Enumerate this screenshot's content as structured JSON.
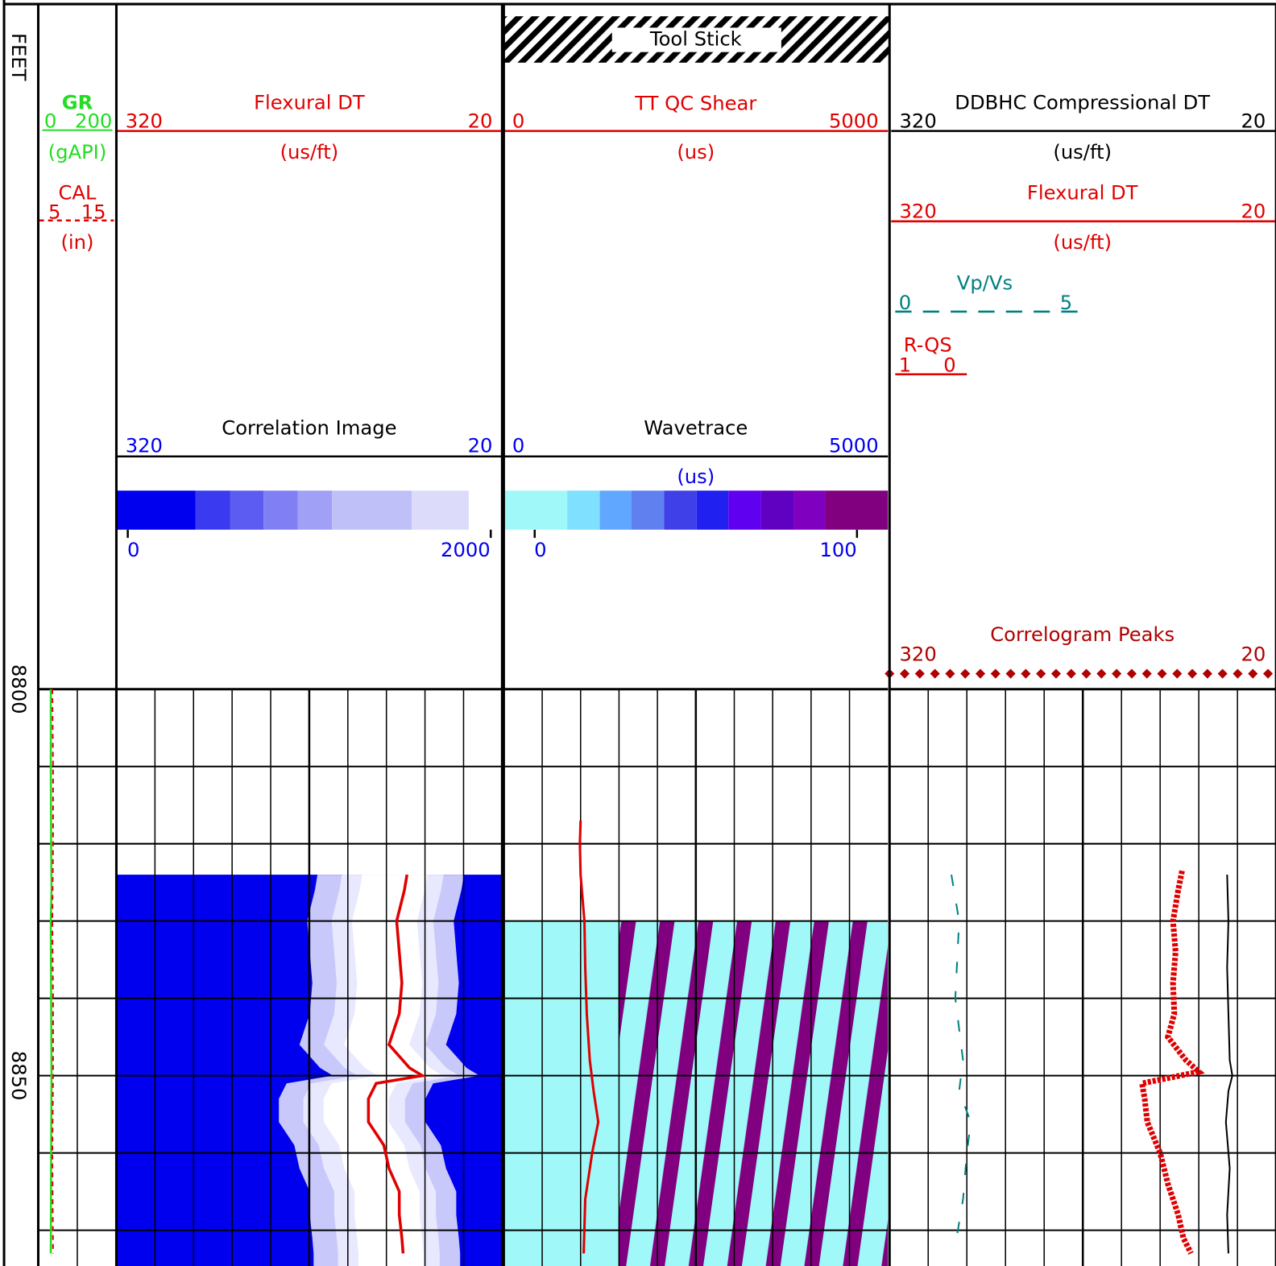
{
  "depth_track": {
    "unit": "FEET",
    "labels": [
      8800,
      8850
    ]
  },
  "gr": {
    "name": "GR",
    "left": 0,
    "right": 200,
    "unit": "(gAPI)",
    "color": "#22dd22",
    "data": {
      "depths": [
        8800,
        8810,
        8820,
        8826,
        8830,
        8840,
        8850,
        8860,
        8873
      ],
      "values": [
        32,
        32,
        33,
        34,
        32,
        33,
        34,
        33,
        32
      ]
    }
  },
  "cal": {
    "name": "CAL",
    "left": 5,
    "right": 15,
    "unit": "(in)",
    "color": "#e00000",
    "data": {
      "depths": [
        8800,
        8810,
        8820,
        8830,
        8840,
        8850,
        8860,
        8873
      ],
      "values": [
        6.8,
        6.9,
        6.9,
        6.8,
        6.9,
        6.9,
        6.8,
        6.9
      ]
    }
  },
  "flexural_dt": {
    "name": "Flexural DT",
    "left": 320,
    "right": 20,
    "unit": "(us/ft)",
    "color": "#e00000",
    "data": {
      "depths": [
        8824,
        8826,
        8830,
        8834,
        8838,
        8842,
        8846,
        8849,
        8850,
        8851,
        8853,
        8856,
        8859,
        8862,
        8865,
        8868,
        8871,
        8873
      ],
      "values": [
        94,
        96,
        102,
        100,
        98,
        100,
        108,
        92,
        82,
        118,
        124,
        124,
        112,
        108,
        100,
        100,
        98,
        97
      ]
    }
  },
  "correlation_image": {
    "name": "Correlation Image",
    "left": 320,
    "right": 20,
    "scale_left": 0,
    "scale_right": 2000
  },
  "tool_stick": "Tool Stick",
  "tt_qc_shear": {
    "name": "TT QC Shear",
    "left": 0,
    "right": 5000,
    "unit": "(us)",
    "color": "#e00000",
    "data": {
      "depths": [
        8817,
        8820,
        8824,
        8830,
        8836,
        8842,
        8848,
        8852,
        8856,
        8860,
        8866,
        8873
      ],
      "values": [
        1000,
        990,
        1000,
        1050,
        1060,
        1080,
        1120,
        1170,
        1230,
        1150,
        1060,
        1040
      ]
    }
  },
  "wavetrace": {
    "name": "Wavetrace",
    "left": 0,
    "right": 5000,
    "unit": "(us)",
    "scale_left": 0,
    "scale_right": 100
  },
  "ddbhc_dt": {
    "name": "DDBHC Compressional DT",
    "left": 320,
    "right": 20,
    "unit": "(us/ft)",
    "color": "#000000",
    "data": {
      "depths": [
        8824,
        8830,
        8836,
        8842,
        8848,
        8850,
        8852,
        8856,
        8862,
        8868,
        8873
      ],
      "values": [
        58,
        57,
        58,
        57,
        56,
        54,
        57,
        59,
        56,
        58,
        57
      ]
    }
  },
  "flexural_dt_2": {
    "name": "Flexural DT",
    "left": 320,
    "right": 20,
    "unit": "(us/ft)",
    "color": "#e00000"
  },
  "vp_vs": {
    "name": "Vp/Vs",
    "left": 0,
    "right": 5,
    "color": "#008080",
    "data": {
      "depths": [
        8824,
        8830,
        8840,
        8848,
        8852,
        8856,
        8860,
        8866,
        8872
      ],
      "values": [
        0.8,
        0.9,
        0.85,
        0.95,
        0.9,
        1.05,
        1.0,
        0.95,
        0.85
      ]
    }
  },
  "r_qs": {
    "name": "R-QS",
    "left": 1,
    "right": 0,
    "color": "#e00000"
  },
  "correlogram_peaks": {
    "name": "Correlogram Peaks",
    "left": 320,
    "right": 20,
    "color": "#e00000",
    "data": {
      "depths": [
        8823.5,
        8826,
        8830,
        8834,
        8838,
        8842,
        8845,
        8848,
        8849.5,
        8851,
        8853,
        8856,
        8860,
        8864,
        8868,
        8871,
        8873
      ],
      "values": [
        93,
        96,
        100,
        98,
        100,
        99,
        104,
        90,
        80,
        124,
        122,
        120,
        110,
        104,
        96,
        92,
        86
      ]
    }
  }
}
